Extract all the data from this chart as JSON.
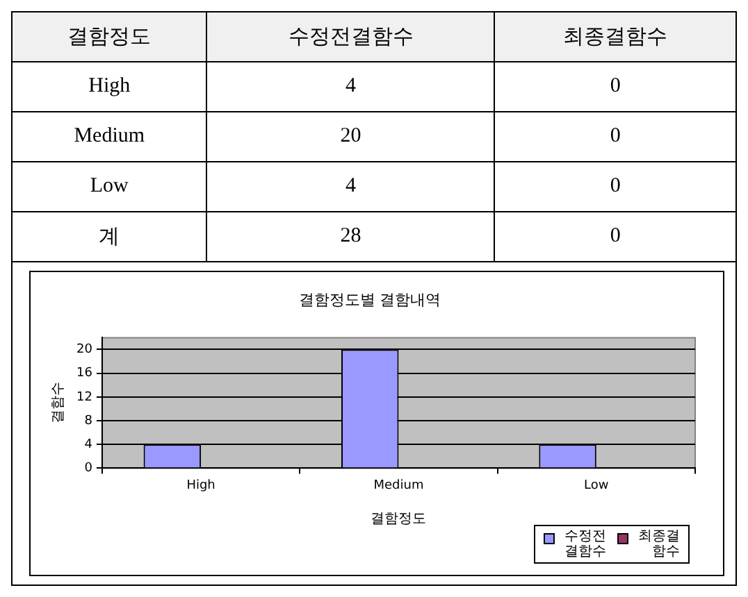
{
  "chart_data": [
    {
      "type": "other",
      "annotations": [
        "결함정도",
        "수정전결함수",
        "최종결함수",
        "High",
        "4",
        "0",
        "Medium",
        "20",
        "0",
        "Low",
        "4",
        "0",
        "계",
        "28",
        "0"
      ]
    },
    {
      "type": "bar",
      "title": "결함정도별 결함내역",
      "xlabel": "결함정도",
      "ylabel": "결함수",
      "categories": [
        "High",
        "Medium",
        "Low"
      ],
      "series": [
        {
          "name": "수정전결함수",
          "color": "#9999ff",
          "values": [
            4,
            20,
            4
          ]
        },
        {
          "name": "최종결함수",
          "color": "#993366",
          "values": [
            0,
            0,
            0
          ]
        }
      ],
      "ylim": [
        0,
        22
      ],
      "yticks": [
        0,
        4,
        8,
        12,
        16,
        20
      ],
      "grid": "y",
      "legend": "bottom right"
    }
  ]
}
